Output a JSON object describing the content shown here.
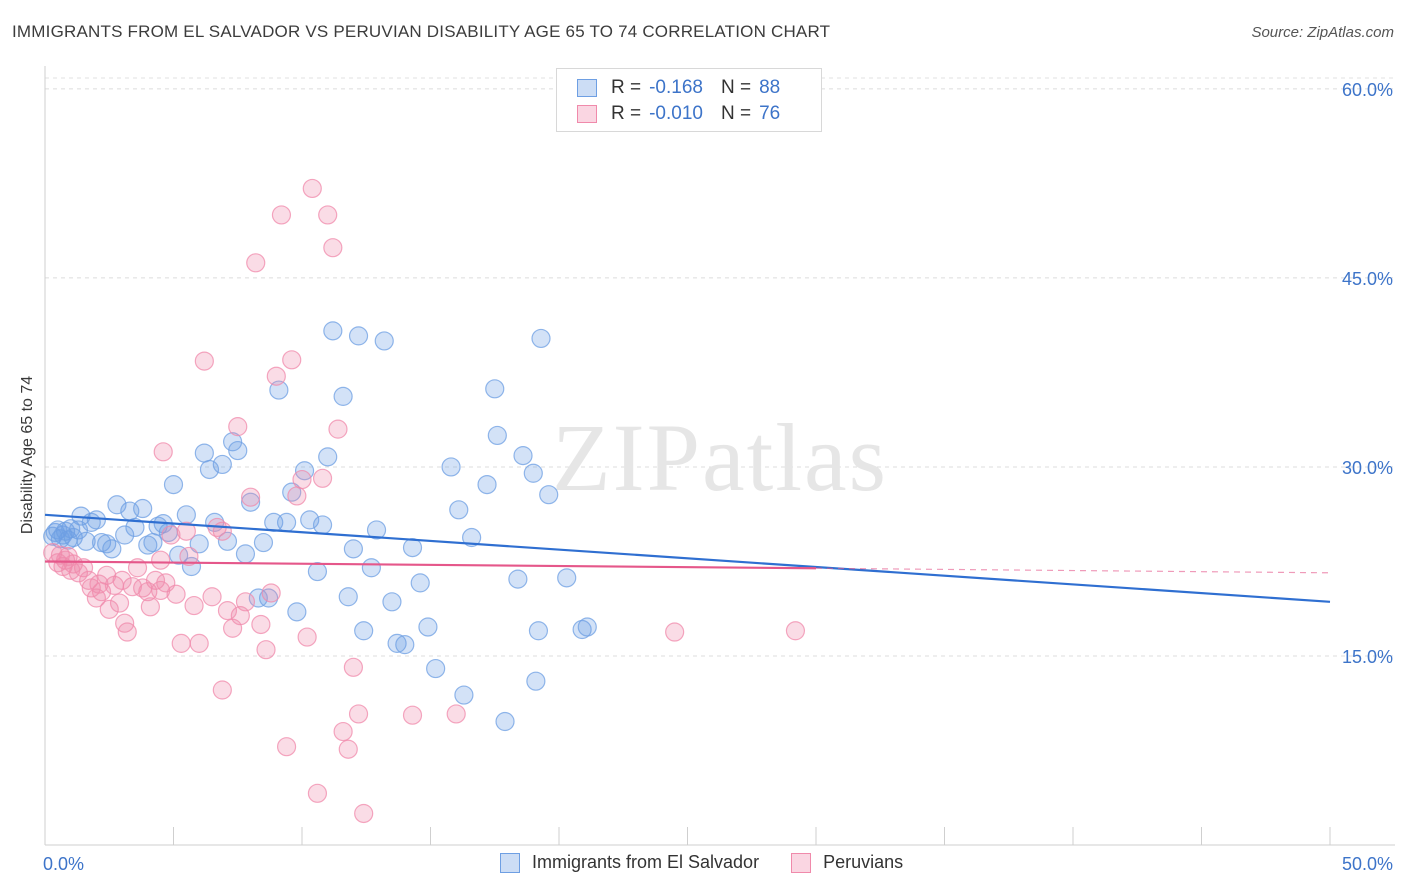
{
  "chart_data": {
    "type": "scatter",
    "title": "IMMIGRANTS FROM EL SALVADOR VS PERUVIAN DISABILITY AGE 65 TO 74 CORRELATION CHART",
    "source": "Source: ZipAtlas.com",
    "watermark": "ZIPatlas",
    "xlabel": "",
    "ylabel": "Disability Age 65 to 74",
    "xlim": [
      0,
      50
    ],
    "ylim": [
      0,
      61.5
    ],
    "x_tick_labels": [
      "0.0%",
      "50.0%"
    ],
    "y_ticks": [
      15,
      30,
      45,
      60
    ],
    "y_tick_labels": [
      "15.0%",
      "30.0%",
      "45.0%",
      "60.0%"
    ],
    "legend": [
      {
        "r_label": "R =",
        "r_value": "-0.168",
        "n_label": "N =",
        "n_value": "88"
      },
      {
        "r_label": "R =",
        "r_value": "-0.010",
        "n_label": "N =",
        "n_value": "76"
      }
    ],
    "series": [
      {
        "name": "Immigrants from El Salvador",
        "color": "#6e9fe3",
        "line_color": "#2f6fd1",
        "trend": {
          "x0": 0,
          "y0": 26.2,
          "x1": 50,
          "y1": 19.3,
          "solid_until": 50
        },
        "points": [
          [
            0.3,
            24.5
          ],
          [
            0.4,
            24.8
          ],
          [
            0.5,
            25
          ],
          [
            0.6,
            24.3
          ],
          [
            0.7,
            24.6
          ],
          [
            0.8,
            24.9
          ],
          [
            0.9,
            24.2
          ],
          [
            1.0,
            25.1
          ],
          [
            1.1,
            24.4
          ],
          [
            1.3,
            25.0
          ],
          [
            1.4,
            26.1
          ],
          [
            1.6,
            24.1
          ],
          [
            1.8,
            25.6
          ],
          [
            2.0,
            25.8
          ],
          [
            2.2,
            24.0
          ],
          [
            2.4,
            23.9
          ],
          [
            2.6,
            23.5
          ],
          [
            2.8,
            27.0
          ],
          [
            3.1,
            24.6
          ],
          [
            3.3,
            26.5
          ],
          [
            3.5,
            25.2
          ],
          [
            3.8,
            26.7
          ],
          [
            4.0,
            23.8
          ],
          [
            4.2,
            24.0
          ],
          [
            4.4,
            25.3
          ],
          [
            4.6,
            25.5
          ],
          [
            4.8,
            24.8
          ],
          [
            5.0,
            28.6
          ],
          [
            5.2,
            23.0
          ],
          [
            5.5,
            26.2
          ],
          [
            5.7,
            22.1
          ],
          [
            6.0,
            23.9
          ],
          [
            6.2,
            31.1
          ],
          [
            6.4,
            29.8
          ],
          [
            6.6,
            25.6
          ],
          [
            6.9,
            30.2
          ],
          [
            7.1,
            24.1
          ],
          [
            7.3,
            32.0
          ],
          [
            7.5,
            31.3
          ],
          [
            7.8,
            23.1
          ],
          [
            8.0,
            27.2
          ],
          [
            8.3,
            19.6
          ],
          [
            8.5,
            24.0
          ],
          [
            8.7,
            19.6
          ],
          [
            8.9,
            25.6
          ],
          [
            9.1,
            36.1
          ],
          [
            9.4,
            25.6
          ],
          [
            9.6,
            28.0
          ],
          [
            9.8,
            18.5
          ],
          [
            10.1,
            29.7
          ],
          [
            10.3,
            25.8
          ],
          [
            10.6,
            21.7
          ],
          [
            10.8,
            25.4
          ],
          [
            11.0,
            30.8
          ],
          [
            11.2,
            40.8
          ],
          [
            11.6,
            35.6
          ],
          [
            11.8,
            19.7
          ],
          [
            12.0,
            23.5
          ],
          [
            12.2,
            40.4
          ],
          [
            12.4,
            17.0
          ],
          [
            12.7,
            22.0
          ],
          [
            12.9,
            25.0
          ],
          [
            13.2,
            40.0
          ],
          [
            13.5,
            19.3
          ],
          [
            13.7,
            16.0
          ],
          [
            14.0,
            15.9
          ],
          [
            14.3,
            23.6
          ],
          [
            14.6,
            20.8
          ],
          [
            14.9,
            17.3
          ],
          [
            15.2,
            14.0
          ],
          [
            15.8,
            30.0
          ],
          [
            16.1,
            26.6
          ],
          [
            16.3,
            11.9
          ],
          [
            16.6,
            24.4
          ],
          [
            17.2,
            28.6
          ],
          [
            17.5,
            36.2
          ],
          [
            17.6,
            32.5
          ],
          [
            17.9,
            9.8
          ],
          [
            18.4,
            21.1
          ],
          [
            18.6,
            30.9
          ],
          [
            19.3,
            40.2
          ],
          [
            19.0,
            29.5
          ],
          [
            19.1,
            13.0
          ],
          [
            19.2,
            17.0
          ],
          [
            19.6,
            27.8
          ],
          [
            20.3,
            21.2
          ],
          [
            20.9,
            17.1
          ],
          [
            21.1,
            17.3
          ]
        ]
      },
      {
        "name": "Peruvians",
        "color": "#f08aab",
        "line_color": "#e5578a",
        "trend": {
          "x0": 0,
          "y0": 22.5,
          "x1": 50,
          "y1": 21.6,
          "solid_until": 30
        },
        "points": [
          [
            0.3,
            23.2
          ],
          [
            0.5,
            22.4
          ],
          [
            0.6,
            23.0
          ],
          [
            0.7,
            22.1
          ],
          [
            0.8,
            22.6
          ],
          [
            0.9,
            22.9
          ],
          [
            1.0,
            21.8
          ],
          [
            1.1,
            22.3
          ],
          [
            1.3,
            21.6
          ],
          [
            1.5,
            22.0
          ],
          [
            1.7,
            21.0
          ],
          [
            1.8,
            20.4
          ],
          [
            2.0,
            19.6
          ],
          [
            2.1,
            20.7
          ],
          [
            2.2,
            20.1
          ],
          [
            2.4,
            21.4
          ],
          [
            2.5,
            18.7
          ],
          [
            2.7,
            20.6
          ],
          [
            2.9,
            19.2
          ],
          [
            3.0,
            21.0
          ],
          [
            3.2,
            16.9
          ],
          [
            3.4,
            20.5
          ],
          [
            3.6,
            22.0
          ],
          [
            3.8,
            20.4
          ],
          [
            4.0,
            20.1
          ],
          [
            4.1,
            18.9
          ],
          [
            4.3,
            21.0
          ],
          [
            4.5,
            22.6
          ],
          [
            4.7,
            20.8
          ],
          [
            4.9,
            24.6
          ],
          [
            5.1,
            19.9
          ],
          [
            5.3,
            16.0
          ],
          [
            5.5,
            24.9
          ],
          [
            5.6,
            22.9
          ],
          [
            5.8,
            19.0
          ],
          [
            6.0,
            16.0
          ],
          [
            6.2,
            38.4
          ],
          [
            6.5,
            19.7
          ],
          [
            6.7,
            25.2
          ],
          [
            6.9,
            12.3
          ],
          [
            7.1,
            18.6
          ],
          [
            7.3,
            17.2
          ],
          [
            7.5,
            33.2
          ],
          [
            7.6,
            18.2
          ],
          [
            7.8,
            19.3
          ],
          [
            8.0,
            27.6
          ],
          [
            8.2,
            46.2
          ],
          [
            8.4,
            17.5
          ],
          [
            8.6,
            15.5
          ],
          [
            8.8,
            20.0
          ],
          [
            9.0,
            37.2
          ],
          [
            9.2,
            50.0
          ],
          [
            9.4,
            7.8
          ],
          [
            9.6,
            38.5
          ],
          [
            9.8,
            27.7
          ],
          [
            10.0,
            29.0
          ],
          [
            10.2,
            16.5
          ],
          [
            10.4,
            52.1
          ],
          [
            10.6,
            4.1
          ],
          [
            10.8,
            29.1
          ],
          [
            11.0,
            50.0
          ],
          [
            11.2,
            47.4
          ],
          [
            11.4,
            33.0
          ],
          [
            11.6,
            9.0
          ],
          [
            11.8,
            7.6
          ],
          [
            12.0,
            14.1
          ],
          [
            12.2,
            10.4
          ],
          [
            12.4,
            2.5
          ],
          [
            14.3,
            10.3
          ],
          [
            16.0,
            10.4
          ],
          [
            3.1,
            17.6
          ],
          [
            4.5,
            20.2
          ],
          [
            4.6,
            31.2
          ],
          [
            6.9,
            24.9
          ],
          [
            24.5,
            16.9
          ],
          [
            29.2,
            17.0
          ]
        ]
      }
    ]
  }
}
